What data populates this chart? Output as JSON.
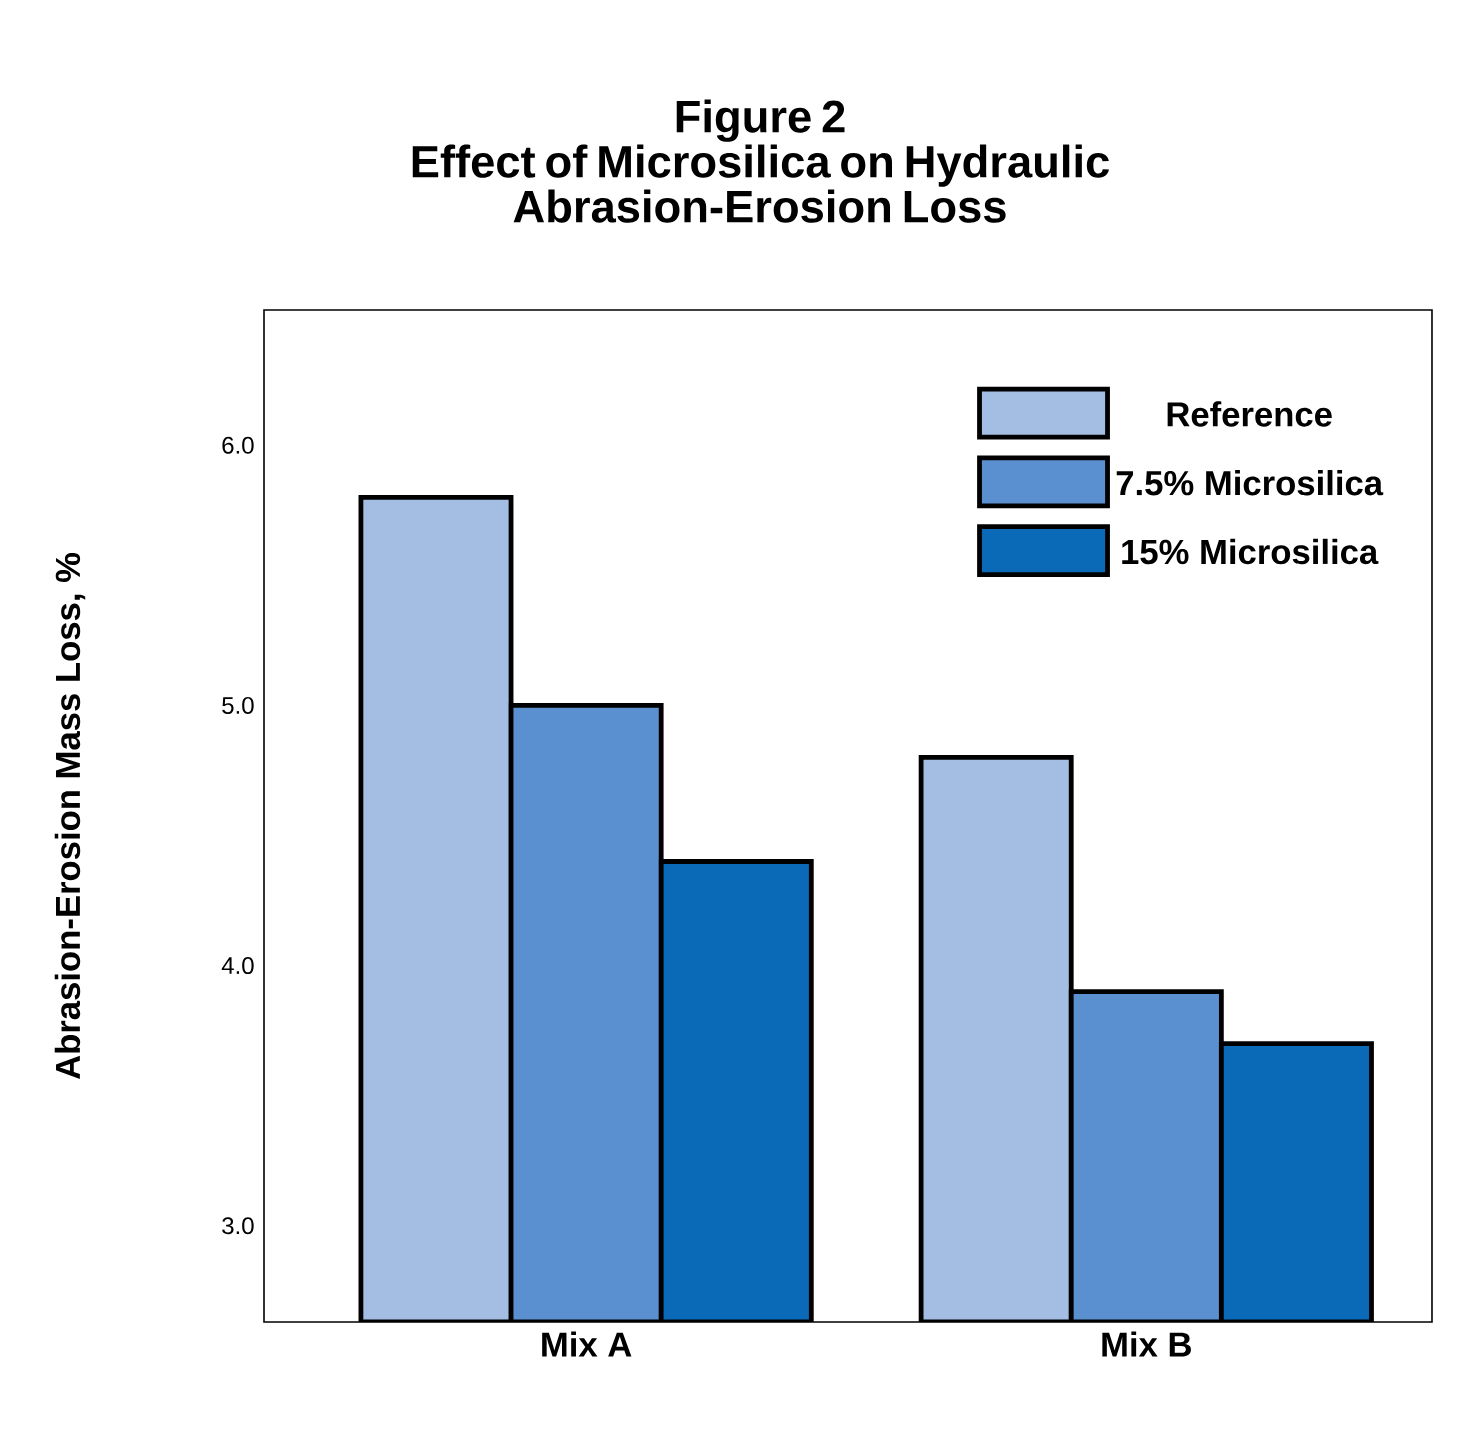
{
  "chart_data": {
    "type": "bar",
    "title": "Figure 2",
    "subtitle": "Effect of Microsilica on Hydraulic Abrasion-Erosion Loss",
    "ylabel": "Abrasion-Erosion Mass Loss, %",
    "categories": [
      "Mix A",
      "Mix B"
    ],
    "series": [
      {
        "name": "Reference",
        "color": "#a3bde3",
        "values": [
          5.8,
          4.8
        ]
      },
      {
        "name": "7.5% Microsilica",
        "color": "#5b90d0",
        "values": [
          5.0,
          3.9
        ]
      },
      {
        "name": "15% Microsilica",
        "color": "#0a6ab8",
        "values": [
          4.4,
          3.7
        ]
      }
    ],
    "ylim": [
      2.63,
      6.52
    ],
    "yticks": [
      {
        "value": 3,
        "label": "3.0"
      },
      {
        "value": 4,
        "label": "4.0"
      },
      {
        "value": 5,
        "label": "5.0"
      },
      {
        "value": 6,
        "label": "6.0"
      }
    ],
    "grid": false,
    "legend": "top right"
  }
}
